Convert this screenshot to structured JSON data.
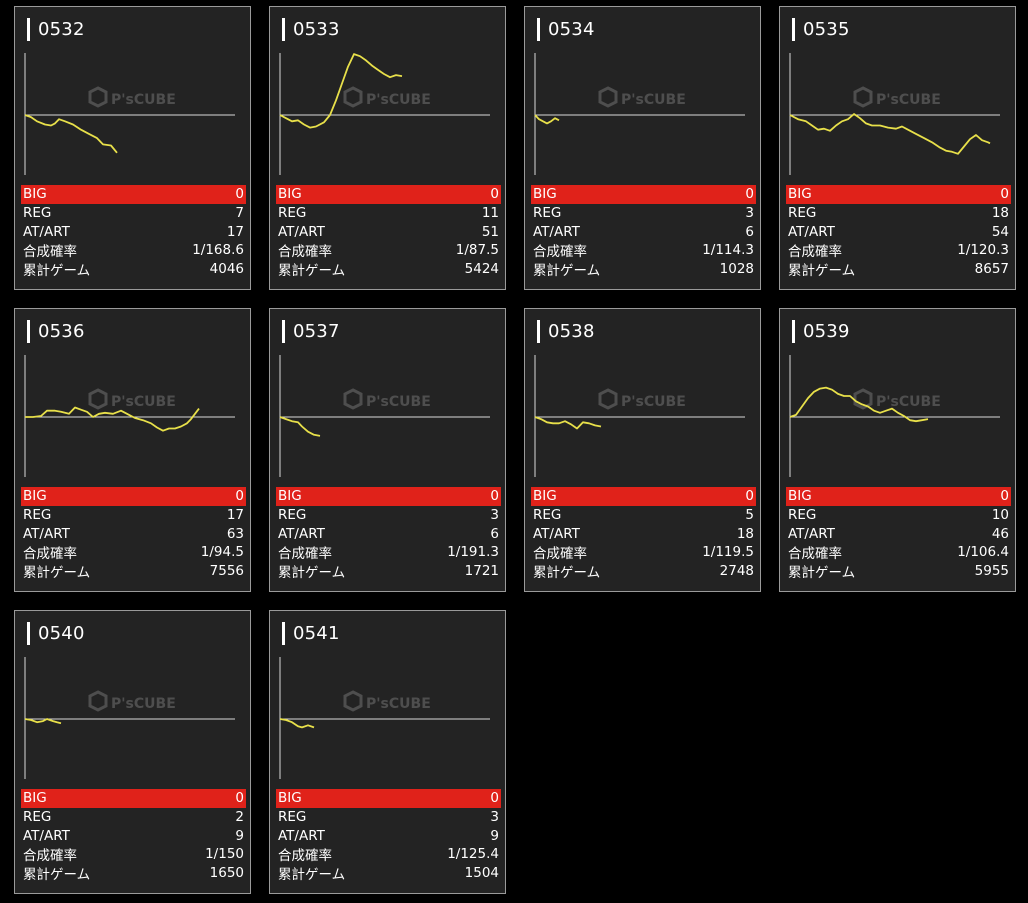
{
  "colors": {
    "background": "#000000",
    "card": "#232323",
    "big_row": "#e0221a",
    "graph_line": "#e8e04a",
    "baseline": "#d8d8d8",
    "axis": "#d8d8d8"
  },
  "watermark": "P'sCUBE",
  "labels": {
    "big": "BIG",
    "reg": "REG",
    "at_art": "AT/ART",
    "combined_rate": "合成確率",
    "total_games": "累計ゲーム"
  },
  "machines": [
    {
      "number": "0532",
      "big": "0",
      "reg": "7",
      "at_art": "17",
      "combined_rate": "1/168.6",
      "total_games": "4046",
      "graph": [
        [
          0,
          0
        ],
        [
          6,
          -2
        ],
        [
          12,
          -6
        ],
        [
          20,
          -9
        ],
        [
          26,
          -10
        ],
        [
          30,
          -8
        ],
        [
          34,
          -4
        ],
        [
          40,
          -6
        ],
        [
          48,
          -9
        ],
        [
          56,
          -14
        ],
        [
          64,
          -18
        ],
        [
          72,
          -22
        ],
        [
          78,
          -28
        ],
        [
          86,
          -29
        ],
        [
          92,
          -36
        ]
      ]
    },
    {
      "number": "0533",
      "big": "0",
      "reg": "11",
      "at_art": "51",
      "combined_rate": "1/87.5",
      "total_games": "5424",
      "graph": [
        [
          0,
          0
        ],
        [
          6,
          -3
        ],
        [
          12,
          -6
        ],
        [
          18,
          -5
        ],
        [
          24,
          -9
        ],
        [
          30,
          -12
        ],
        [
          36,
          -11
        ],
        [
          44,
          -7
        ],
        [
          50,
          0
        ],
        [
          56,
          14
        ],
        [
          62,
          30
        ],
        [
          68,
          46
        ],
        [
          74,
          58
        ],
        [
          80,
          56
        ],
        [
          86,
          52
        ],
        [
          92,
          47
        ],
        [
          98,
          43
        ],
        [
          104,
          39
        ],
        [
          110,
          36
        ],
        [
          116,
          38
        ],
        [
          122,
          37
        ]
      ]
    },
    {
      "number": "0534",
      "big": "0",
      "reg": "3",
      "at_art": "6",
      "combined_rate": "1/114.3",
      "total_games": "1028",
      "graph": [
        [
          0,
          0
        ],
        [
          4,
          -4
        ],
        [
          8,
          -6
        ],
        [
          12,
          -8
        ],
        [
          16,
          -6
        ],
        [
          20,
          -3
        ],
        [
          24,
          -5
        ]
      ]
    },
    {
      "number": "0535",
      "big": "0",
      "reg": "18",
      "at_art": "54",
      "combined_rate": "1/120.3",
      "total_games": "8657",
      "graph": [
        [
          0,
          0
        ],
        [
          8,
          -4
        ],
        [
          16,
          -6
        ],
        [
          22,
          -10
        ],
        [
          28,
          -14
        ],
        [
          34,
          -13
        ],
        [
          40,
          -15
        ],
        [
          46,
          -10
        ],
        [
          52,
          -6
        ],
        [
          58,
          -4
        ],
        [
          64,
          1
        ],
        [
          70,
          -3
        ],
        [
          76,
          -8
        ],
        [
          82,
          -10
        ],
        [
          90,
          -10
        ],
        [
          98,
          -12
        ],
        [
          106,
          -13
        ],
        [
          112,
          -11
        ],
        [
          118,
          -14
        ],
        [
          126,
          -18
        ],
        [
          134,
          -22
        ],
        [
          142,
          -26
        ],
        [
          150,
          -31
        ],
        [
          156,
          -34
        ],
        [
          162,
          -35
        ],
        [
          168,
          -37
        ],
        [
          174,
          -30
        ],
        [
          180,
          -23
        ],
        [
          186,
          -19
        ],
        [
          192,
          -24
        ],
        [
          198,
          -26
        ],
        [
          200,
          -27
        ]
      ]
    },
    {
      "number": "0536",
      "big": "0",
      "reg": "17",
      "at_art": "63",
      "combined_rate": "1/94.5",
      "total_games": "7556",
      "graph": [
        [
          0,
          0
        ],
        [
          8,
          0
        ],
        [
          16,
          1
        ],
        [
          22,
          6
        ],
        [
          30,
          6
        ],
        [
          36,
          5
        ],
        [
          44,
          3
        ],
        [
          50,
          9
        ],
        [
          56,
          7
        ],
        [
          62,
          5
        ],
        [
          68,
          0
        ],
        [
          74,
          3
        ],
        [
          80,
          4
        ],
        [
          88,
          3
        ],
        [
          96,
          6
        ],
        [
          102,
          3
        ],
        [
          110,
          -1
        ],
        [
          118,
          -3
        ],
        [
          126,
          -6
        ],
        [
          132,
          -10
        ],
        [
          138,
          -13
        ],
        [
          144,
          -11
        ],
        [
          150,
          -11
        ],
        [
          156,
          -9
        ],
        [
          162,
          -6
        ],
        [
          166,
          -2
        ],
        [
          170,
          3
        ],
        [
          174,
          8
        ]
      ]
    },
    {
      "number": "0537",
      "big": "0",
      "reg": "3",
      "at_art": "6",
      "combined_rate": "1/191.3",
      "total_games": "1721",
      "graph": [
        [
          0,
          0
        ],
        [
          6,
          -2
        ],
        [
          12,
          -4
        ],
        [
          18,
          -5
        ],
        [
          22,
          -9
        ],
        [
          28,
          -14
        ],
        [
          34,
          -17
        ],
        [
          40,
          -18
        ]
      ]
    },
    {
      "number": "0538",
      "big": "0",
      "reg": "5",
      "at_art": "18",
      "combined_rate": "1/119.5",
      "total_games": "2748",
      "graph": [
        [
          0,
          0
        ],
        [
          6,
          -2
        ],
        [
          12,
          -5
        ],
        [
          18,
          -6
        ],
        [
          24,
          -6
        ],
        [
          30,
          -4
        ],
        [
          36,
          -7
        ],
        [
          42,
          -11
        ],
        [
          48,
          -5
        ],
        [
          54,
          -6
        ],
        [
          60,
          -8
        ],
        [
          66,
          -9
        ]
      ]
    },
    {
      "number": "0539",
      "big": "0",
      "reg": "10",
      "at_art": "46",
      "combined_rate": "1/106.4",
      "total_games": "5955",
      "graph": [
        [
          0,
          0
        ],
        [
          6,
          2
        ],
        [
          12,
          10
        ],
        [
          18,
          18
        ],
        [
          24,
          24
        ],
        [
          30,
          27
        ],
        [
          36,
          28
        ],
        [
          42,
          26
        ],
        [
          48,
          22
        ],
        [
          54,
          20
        ],
        [
          60,
          20
        ],
        [
          66,
          15
        ],
        [
          72,
          12
        ],
        [
          78,
          10
        ],
        [
          84,
          6
        ],
        [
          90,
          4
        ],
        [
          96,
          6
        ],
        [
          102,
          8
        ],
        [
          108,
          4
        ],
        [
          114,
          1
        ],
        [
          120,
          -3
        ],
        [
          126,
          -4
        ],
        [
          132,
          -3
        ],
        [
          138,
          -2
        ]
      ]
    },
    {
      "number": "0540",
      "big": "0",
      "reg": "2",
      "at_art": "9",
      "combined_rate": "1/150",
      "total_games": "1650",
      "graph": [
        [
          0,
          0
        ],
        [
          6,
          -1
        ],
        [
          12,
          -3
        ],
        [
          18,
          -2
        ],
        [
          22,
          0
        ],
        [
          28,
          -2
        ],
        [
          32,
          -3
        ],
        [
          36,
          -4
        ]
      ]
    },
    {
      "number": "0541",
      "big": "0",
      "reg": "3",
      "at_art": "9",
      "combined_rate": "1/125.4",
      "total_games": "1504",
      "graph": [
        [
          0,
          0
        ],
        [
          6,
          -1
        ],
        [
          12,
          -3
        ],
        [
          18,
          -7
        ],
        [
          22,
          -8
        ],
        [
          28,
          -6
        ],
        [
          34,
          -8
        ]
      ]
    }
  ]
}
